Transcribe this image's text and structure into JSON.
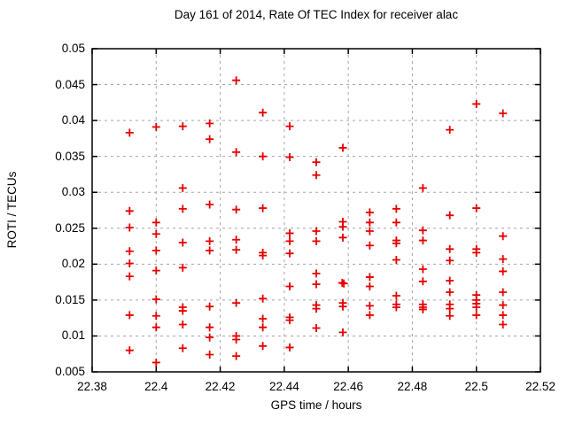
{
  "figure": {
    "background_color": "#ffffff",
    "text_color": "#000000"
  },
  "chart_data": {
    "type": "scatter",
    "title": "Day 161 of 2014, Rate Of TEC Index for receiver alac",
    "xlabel": "GPS time / hours",
    "ylabel": "ROTI / TECUs",
    "xlim": [
      22.38,
      22.52
    ],
    "ylim": [
      0.005,
      0.05
    ],
    "xticks": [
      22.38,
      22.4,
      22.42,
      22.44,
      22.46,
      22.48,
      22.5,
      22.52
    ],
    "xtick_labels": [
      "22.38",
      "22.4",
      "22.42",
      "22.44",
      "22.46",
      "22.48",
      "22.5",
      "22.52"
    ],
    "yticks": [
      0.005,
      0.01,
      0.015,
      0.02,
      0.025,
      0.03,
      0.035,
      0.04,
      0.045,
      0.05
    ],
    "ytick_labels": [
      "0.005",
      "0.01",
      "0.015",
      "0.02",
      "0.025",
      "0.03",
      "0.035",
      "0.04",
      "0.045",
      "0.05"
    ],
    "grid": "dashed",
    "grid_color": "#a6a6a6",
    "axis_color": "#000000",
    "legend": "none",
    "marker": {
      "shape": "plus",
      "color": "#e60000",
      "size": 9
    },
    "series": [
      {
        "name": "ROTI",
        "points": [
          [
            22.3917,
            0.0383
          ],
          [
            22.3917,
            0.0274
          ],
          [
            22.3917,
            0.0251
          ],
          [
            22.3917,
            0.0218
          ],
          [
            22.3917,
            0.0201
          ],
          [
            22.3917,
            0.0183
          ],
          [
            22.3917,
            0.0129
          ],
          [
            22.3917,
            0.008
          ],
          [
            22.4,
            0.0391
          ],
          [
            22.4,
            0.0258
          ],
          [
            22.4,
            0.0242
          ],
          [
            22.4,
            0.0219
          ],
          [
            22.4,
            0.0191
          ],
          [
            22.4,
            0.0151
          ],
          [
            22.4,
            0.0128
          ],
          [
            22.4,
            0.0112
          ],
          [
            22.4,
            0.0063
          ],
          [
            22.4083,
            0.0392
          ],
          [
            22.4083,
            0.0306
          ],
          [
            22.4083,
            0.0277
          ],
          [
            22.4083,
            0.023
          ],
          [
            22.4083,
            0.0195
          ],
          [
            22.4083,
            0.014
          ],
          [
            22.4083,
            0.0135
          ],
          [
            22.4083,
            0.0116
          ],
          [
            22.4083,
            0.0083
          ],
          [
            22.4167,
            0.0396
          ],
          [
            22.4167,
            0.0374
          ],
          [
            22.4167,
            0.0283
          ],
          [
            22.4167,
            0.0232
          ],
          [
            22.4167,
            0.0219
          ],
          [
            22.4167,
            0.0141
          ],
          [
            22.4167,
            0.0112
          ],
          [
            22.4167,
            0.0098
          ],
          [
            22.4167,
            0.0074
          ],
          [
            22.425,
            0.0456
          ],
          [
            22.425,
            0.0356
          ],
          [
            22.425,
            0.0276
          ],
          [
            22.425,
            0.0234
          ],
          [
            22.425,
            0.022
          ],
          [
            22.425,
            0.0146
          ],
          [
            22.425,
            0.01
          ],
          [
            22.425,
            0.0095
          ],
          [
            22.425,
            0.0072
          ],
          [
            22.4333,
            0.0411
          ],
          [
            22.4333,
            0.035
          ],
          [
            22.4333,
            0.0278
          ],
          [
            22.4333,
            0.0216
          ],
          [
            22.4333,
            0.0212
          ],
          [
            22.4333,
            0.0152
          ],
          [
            22.4333,
            0.0124
          ],
          [
            22.4333,
            0.0112
          ],
          [
            22.4333,
            0.0086
          ],
          [
            22.4417,
            0.0392
          ],
          [
            22.4417,
            0.0349
          ],
          [
            22.4417,
            0.0243
          ],
          [
            22.4417,
            0.0232
          ],
          [
            22.4417,
            0.0215
          ],
          [
            22.4417,
            0.0169
          ],
          [
            22.4417,
            0.0126
          ],
          [
            22.4417,
            0.0122
          ],
          [
            22.4417,
            0.0084
          ],
          [
            22.45,
            0.0342
          ],
          [
            22.45,
            0.0324
          ],
          [
            22.45,
            0.0246
          ],
          [
            22.45,
            0.0232
          ],
          [
            22.45,
            0.0187
          ],
          [
            22.45,
            0.0172
          ],
          [
            22.45,
            0.0143
          ],
          [
            22.45,
            0.0138
          ],
          [
            22.45,
            0.0111
          ],
          [
            22.4583,
            0.0362
          ],
          [
            22.4583,
            0.0259
          ],
          [
            22.4583,
            0.0252
          ],
          [
            22.4583,
            0.0237
          ],
          [
            22.4581,
            0.0174
          ],
          [
            22.4586,
            0.0173
          ],
          [
            22.4583,
            0.0146
          ],
          [
            22.4583,
            0.0141
          ],
          [
            22.4583,
            0.0105
          ],
          [
            22.4667,
            0.0272
          ],
          [
            22.4667,
            0.0258
          ],
          [
            22.4667,
            0.0246
          ],
          [
            22.4667,
            0.0226
          ],
          [
            22.4667,
            0.0182
          ],
          [
            22.4667,
            0.0169
          ],
          [
            22.4667,
            0.0142
          ],
          [
            22.4667,
            0.0129
          ],
          [
            22.475,
            0.0277
          ],
          [
            22.475,
            0.0258
          ],
          [
            22.475,
            0.0233
          ],
          [
            22.475,
            0.0229
          ],
          [
            22.475,
            0.0206
          ],
          [
            22.475,
            0.0156
          ],
          [
            22.475,
            0.0144
          ],
          [
            22.475,
            0.014
          ],
          [
            22.4833,
            0.0306
          ],
          [
            22.4833,
            0.0247
          ],
          [
            22.4833,
            0.0233
          ],
          [
            22.4833,
            0.0193
          ],
          [
            22.4833,
            0.0176
          ],
          [
            22.4833,
            0.0144
          ],
          [
            22.4833,
            0.014
          ],
          [
            22.4833,
            0.0137
          ],
          [
            22.4917,
            0.0387
          ],
          [
            22.4917,
            0.0268
          ],
          [
            22.4917,
            0.0221
          ],
          [
            22.4917,
            0.0205
          ],
          [
            22.4917,
            0.0177
          ],
          [
            22.4917,
            0.0161
          ],
          [
            22.4917,
            0.0144
          ],
          [
            22.4917,
            0.0138
          ],
          [
            22.4917,
            0.0128
          ],
          [
            22.5,
            0.0423
          ],
          [
            22.5,
            0.0278
          ],
          [
            22.5,
            0.0221
          ],
          [
            22.5,
            0.0216
          ],
          [
            22.5,
            0.0157
          ],
          [
            22.5,
            0.015
          ],
          [
            22.5,
            0.0145
          ],
          [
            22.5,
            0.014
          ],
          [
            22.5,
            0.0129
          ],
          [
            22.5083,
            0.041
          ],
          [
            22.5083,
            0.0239
          ],
          [
            22.5083,
            0.0207
          ],
          [
            22.5083,
            0.019
          ],
          [
            22.5083,
            0.0161
          ],
          [
            22.5083,
            0.0143
          ],
          [
            22.5083,
            0.0129
          ],
          [
            22.5083,
            0.0116
          ]
        ]
      }
    ]
  }
}
